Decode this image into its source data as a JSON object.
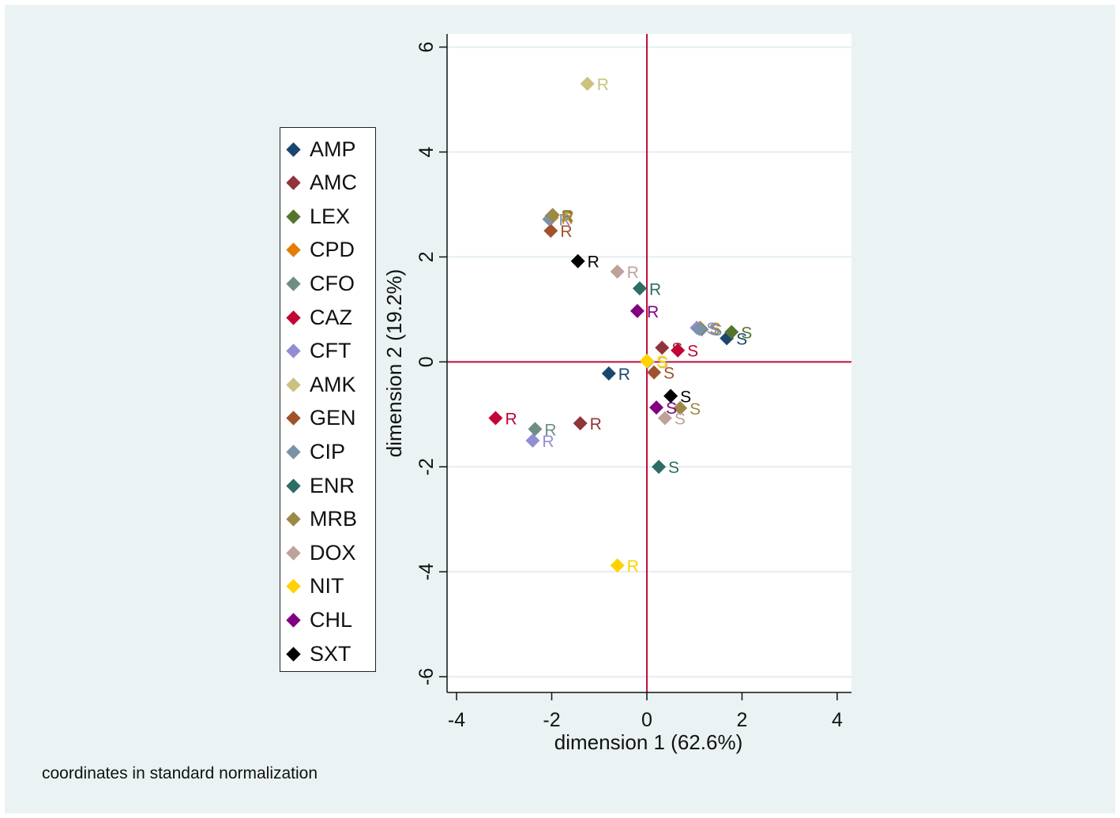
{
  "chart_data": {
    "type": "scatter",
    "title": "",
    "xlabel": "dimension 1 (62.6%)",
    "ylabel": "dimension 2 (19.2%)",
    "xlim": [
      -4.2,
      4.3
    ],
    "ylim": [
      -6.3,
      6.25
    ],
    "xticks": [
      -4,
      -2,
      0,
      2,
      4
    ],
    "yticks": [
      -6,
      -4,
      -2,
      0,
      2,
      4,
      6
    ],
    "note": "coordinates in standard normalization",
    "reference_lines": {
      "x": 0,
      "y": 0,
      "color": "#c0103c"
    },
    "series": [
      {
        "name": "AMP",
        "color": "#1a476f",
        "points": [
          {
            "label": "R",
            "x": -0.8,
            "y": -0.22
          },
          {
            "label": "S",
            "x": 1.68,
            "y": 0.45
          }
        ]
      },
      {
        "name": "AMC",
        "color": "#90353b",
        "points": [
          {
            "label": "R",
            "x": -1.4,
            "y": -1.17
          },
          {
            "label": "S",
            "x": 0.32,
            "y": 0.27
          }
        ]
      },
      {
        "name": "LEX",
        "color": "#55752f",
        "points": [
          {
            "label": "R",
            "x": -2.0,
            "y": 2.78
          },
          {
            "label": "S",
            "x": 1.78,
            "y": 0.57
          }
        ]
      },
      {
        "name": "CPD",
        "color": "#e37e00",
        "points": [
          {
            "label": "R",
            "x": -2.0,
            "y": 2.75
          },
          {
            "label": "S",
            "x": 1.12,
            "y": 0.65
          }
        ]
      },
      {
        "name": "CFO",
        "color": "#6e8e84",
        "points": [
          {
            "label": "R",
            "x": -2.35,
            "y": -1.28
          },
          {
            "label": "S",
            "x": 1.15,
            "y": 0.62
          }
        ]
      },
      {
        "name": "CAZ",
        "color": "#c10534",
        "points": [
          {
            "label": "R",
            "x": -3.18,
            "y": -1.07
          },
          {
            "label": "S",
            "x": 0.65,
            "y": 0.22
          }
        ]
      },
      {
        "name": "CFT",
        "color": "#938dd2",
        "points": [
          {
            "label": "R",
            "x": -2.4,
            "y": -1.5
          },
          {
            "label": "S",
            "x": 1.05,
            "y": 0.65
          }
        ]
      },
      {
        "name": "AMK",
        "color": "#cac27e",
        "points": [
          {
            "label": "R",
            "x": -1.25,
            "y": 5.3
          },
          {
            "label": "S",
            "x": 0.02,
            "y": 0.0
          }
        ]
      },
      {
        "name": "GEN",
        "color": "#a0522d",
        "points": [
          {
            "label": "R",
            "x": -2.02,
            "y": 2.5
          },
          {
            "label": "S",
            "x": 0.15,
            "y": -0.2
          }
        ]
      },
      {
        "name": "CIP",
        "color": "#7b92a8",
        "points": [
          {
            "label": "R",
            "x": -2.05,
            "y": 2.72
          },
          {
            "label": "S",
            "x": 1.1,
            "y": 0.63
          }
        ]
      },
      {
        "name": "ENR",
        "color": "#2d6d66",
        "points": [
          {
            "label": "R",
            "x": -0.15,
            "y": 1.4
          },
          {
            "label": "S",
            "x": 0.25,
            "y": -2.0
          }
        ]
      },
      {
        "name": "MRB",
        "color": "#9c8847",
        "points": [
          {
            "label": "R",
            "x": -1.98,
            "y": 2.8
          },
          {
            "label": "S",
            "x": 0.7,
            "y": -0.88
          }
        ]
      },
      {
        "name": "DOX",
        "color": "#bfa19c",
        "points": [
          {
            "label": "R",
            "x": -0.62,
            "y": 1.72
          },
          {
            "label": "S",
            "x": 0.38,
            "y": -1.07
          }
        ]
      },
      {
        "name": "NIT",
        "color": "#ffd200",
        "points": [
          {
            "label": "R",
            "x": -0.62,
            "y": -3.88
          },
          {
            "label": "S",
            "x": 0.0,
            "y": 0.02
          }
        ]
      },
      {
        "name": "CHL",
        "color": "#800080",
        "points": [
          {
            "label": "R",
            "x": -0.2,
            "y": 0.97
          },
          {
            "label": "S",
            "x": 0.2,
            "y": -0.87
          }
        ]
      },
      {
        "name": "SXT",
        "color": "#000000",
        "points": [
          {
            "label": "R",
            "x": -1.45,
            "y": 1.92
          },
          {
            "label": "S",
            "x": 0.5,
            "y": -0.65
          }
        ]
      }
    ]
  }
}
